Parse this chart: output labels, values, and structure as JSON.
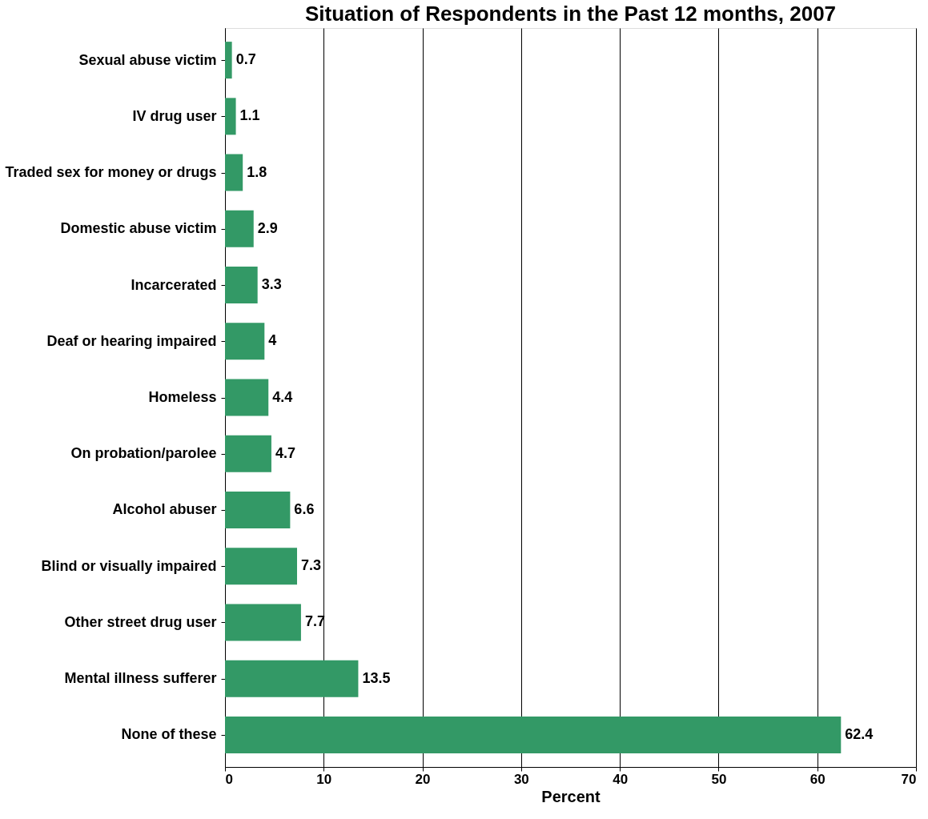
{
  "chart_data": {
    "type": "bar",
    "orientation": "horizontal",
    "title": "Situation of Respondents in the Past 12 months, 2007",
    "xlabel": "Percent",
    "categories": [
      "Sexual abuse victim",
      "IV drug user",
      "Traded sex for money or drugs",
      "Domestic abuse victim",
      "Incarcerated",
      "Deaf or hearing impaired",
      "Homeless",
      "On probation/parolee",
      "Alcohol abuser",
      "Blind or visually impaired",
      "Other street drug user",
      "Mental illness sufferer",
      "None of these"
    ],
    "values": [
      0.7,
      1.1,
      1.8,
      2.9,
      3.3,
      4,
      4.4,
      4.7,
      6.6,
      7.3,
      7.7,
      13.5,
      62.4
    ],
    "color": "#339966",
    "xlim": [
      0,
      70
    ],
    "xticks": [
      0,
      10,
      20,
      30,
      40,
      50,
      60,
      70
    ],
    "grid": "x",
    "data_labels": true
  }
}
